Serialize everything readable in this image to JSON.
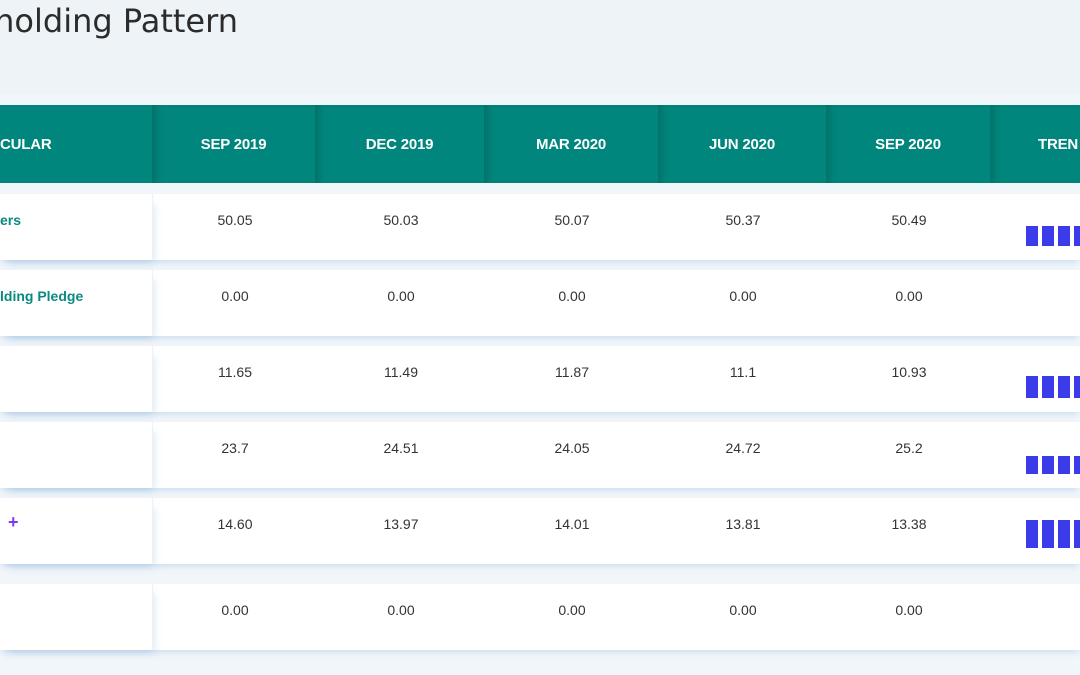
{
  "page": {
    "title": "reholding Pattern"
  },
  "table": {
    "headers": [
      "CULAR",
      "SEP 2019",
      "DEC 2019",
      "MAR 2020",
      "JUN 2020",
      "SEP 2020",
      "TREN"
    ],
    "rows": [
      {
        "name": "ers",
        "has_plus": false,
        "values": [
          "50.05",
          "50.03",
          "50.07",
          "50.37",
          "50.49"
        ],
        "trend": [
          4,
          4,
          4,
          4
        ]
      },
      {
        "name": "lding Pledge",
        "has_plus": false,
        "values": [
          "0.00",
          "0.00",
          "0.00",
          "0.00",
          "0.00"
        ],
        "trend": []
      },
      {
        "name": "",
        "has_plus": false,
        "values": [
          "11.65",
          "11.49",
          "11.87",
          "11.1",
          "10.93"
        ],
        "trend": [
          4,
          4,
          4,
          4
        ]
      },
      {
        "name": "",
        "has_plus": false,
        "values": [
          "23.7",
          "24.51",
          "24.05",
          "24.72",
          "25.2"
        ],
        "trend": [
          4,
          4,
          4,
          4
        ]
      },
      {
        "name": "+",
        "has_plus": true,
        "values": [
          "14.60",
          "13.97",
          "14.01",
          "13.81",
          "13.38"
        ],
        "trend": [
          4,
          4,
          4,
          4
        ]
      },
      {
        "name": "",
        "has_plus": false,
        "values": [
          "0.00",
          "0.00",
          "0.00",
          "0.00",
          "0.00"
        ],
        "trend": []
      }
    ]
  },
  "colors": {
    "header_bg": "#00867c",
    "name_text": "#0a8a80",
    "trend_bar": "#3b3bea",
    "plus_icon": "#7a3cf2"
  }
}
